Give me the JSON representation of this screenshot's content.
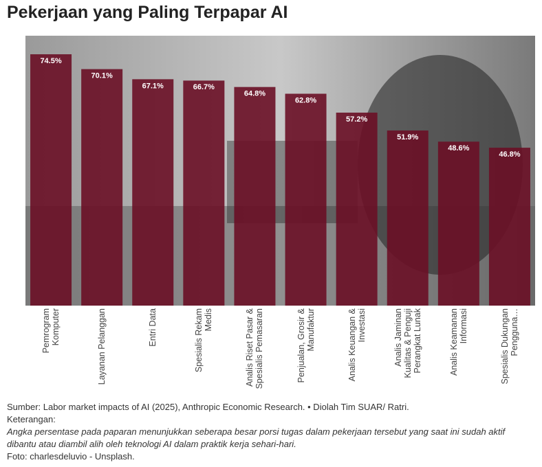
{
  "chart_data": {
    "type": "bar",
    "title": "Pekerjaan yang Paling Terpapar AI",
    "categories": [
      "Pemrogram Komputer",
      "Layanan Pelanggan",
      "Entri Data",
      "Spesialis Rekam Medis",
      "Analis Riset Pasar & Spesialis Pemasaran",
      "Penjualan, Grosir & Manufaktur",
      "Analis Keuangan & Investasi",
      "Analis Jaminan Kualitas & Penguji Perangkat Lunak",
      "Analis Keamanan Informasi",
      "Spesialis Dukungan Pengguna…"
    ],
    "values": [
      74.5,
      70.1,
      67.1,
      66.7,
      64.8,
      62.8,
      57.2,
      51.9,
      48.6,
      46.8
    ],
    "value_labels": [
      "74.5%",
      "70.1%",
      "67.1%",
      "66.7%",
      "64.8%",
      "62.8%",
      "57.2%",
      "51.9%",
      "48.6%",
      "46.8%"
    ],
    "color": "#6a0f26",
    "ylim": [
      0,
      80
    ]
  },
  "footer": {
    "source": "Sumber: Labor market impacts of AI (2025), Anthropic Economic Research. • Diolah Tim SUAR/ Ratri.",
    "note_title": "Keterangan:",
    "note": "Angka persentase pada paparan menunjukkan seberapa besar porsi tugas dalam pekerjaan tersebut yang saat ini sudah aktif dibantu atau diambil alih oleh teknologi AI dalam praktik kerja sehari-hari.",
    "photo": "Foto: charlesdeluvio - Unsplash."
  }
}
